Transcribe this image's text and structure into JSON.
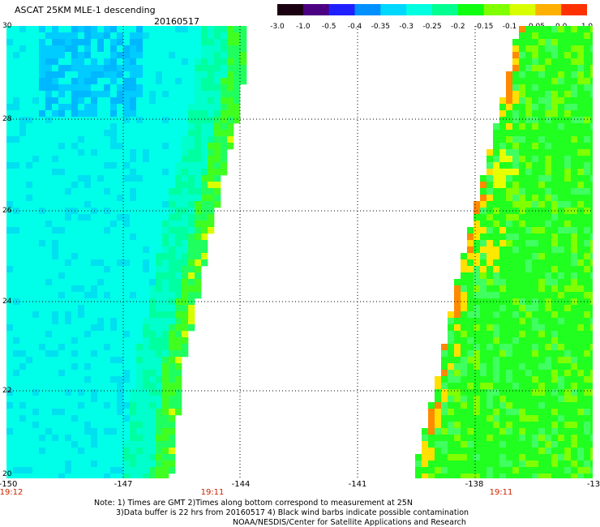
{
  "header": {
    "title": "ASCAT 25KM MLE-1 descending",
    "date": "20160517"
  },
  "colorbar": {
    "ticks": [
      "-3.0",
      "-1.0",
      "-0.5",
      "-0.4",
      "-0.35",
      "-0.3",
      "-0.25",
      "-0.2",
      "-0.15",
      "-0.1",
      "-0.05",
      "0.0",
      "1.0"
    ],
    "colors": [
      "#1a0010",
      "#4b0082",
      "#2020ff",
      "#0090ff",
      "#00d8ff",
      "#00ffe0",
      "#00ff90",
      "#10ff10",
      "#80ff00",
      "#d8ff00",
      "#ffb000",
      "#ff3000"
    ]
  },
  "map": {
    "lat_labels": [
      "30",
      "28",
      "26",
      "24",
      "22",
      "20"
    ],
    "lon_labels": [
      "-150",
      "-147",
      "-144",
      "-141",
      "-138",
      "-13"
    ],
    "time_labels": [
      "19:12",
      "19:11",
      "19:11"
    ],
    "gap_color": "#ffffff",
    "grid_style": "dotted"
  },
  "footer": {
    "note_line1": "Note: 1) Times are GMT 2)Times along bottom correspond to measurement at 25N",
    "note_line2": "3)Data buffer is 22 hrs from 20160517 4) Black wind barbs indicate possible contamination",
    "note_line3": "NOAA/NESDIS/Center for Satellite Applications and Research"
  }
}
